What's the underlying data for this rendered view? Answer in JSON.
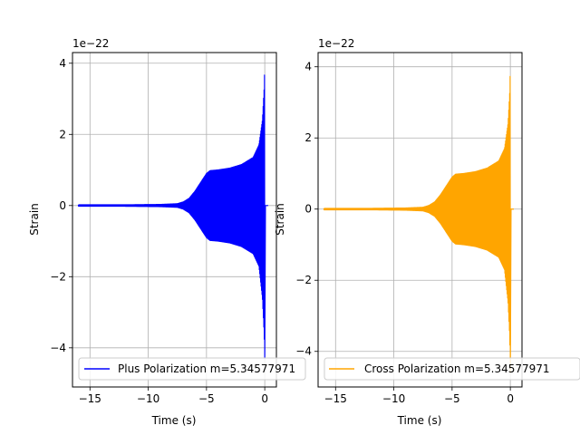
{
  "chart_data": [
    {
      "type": "line",
      "xlabel": "Time (s)",
      "ylabel": "Strain",
      "y_offset_text": "1e−22",
      "xlim": [
        -16.5,
        1.0
      ],
      "ylim": [
        -5.1,
        4.3
      ],
      "xticks": [
        -15,
        -10,
        -5,
        0
      ],
      "xtick_labels": [
        "−15",
        "−10",
        "−5",
        "0"
      ],
      "yticks": [
        4,
        2,
        0,
        -2,
        -4
      ],
      "ytick_labels": [
        "4",
        "2",
        "0",
        "−2",
        "−4"
      ],
      "grid": true,
      "legend_position": "lower-right",
      "series": [
        {
          "name": "Plus Polarization m=5.34577971",
          "color": "#0000ff",
          "envelope": {
            "t": [
              -16.0,
              -12.0,
              -9.0,
              -7.5,
              -7.0,
              -6.5,
              -6.0,
              -5.5,
              -5.0,
              -4.7,
              -4.0,
              -3.0,
              -2.0,
              -1.0,
              -0.5,
              -0.2,
              -0.05,
              0.0
            ],
            "amp": [
              0.02,
              0.02,
              0.03,
              0.05,
              0.1,
              0.2,
              0.4,
              0.65,
              0.9,
              0.98,
              1.0,
              1.05,
              1.15,
              1.35,
              1.7,
              2.4,
              3.3,
              3.9
            ],
            "amp_min": [
              0.02,
              0.02,
              0.03,
              0.05,
              0.1,
              0.2,
              0.4,
              0.65,
              0.9,
              0.98,
              1.0,
              1.05,
              1.15,
              1.35,
              1.7,
              2.6,
              3.6,
              4.3
            ]
          }
        }
      ]
    },
    {
      "type": "line",
      "xlabel": "Time (s)",
      "ylabel": "Strain",
      "y_offset_text": "1e−22",
      "xlim": [
        -16.5,
        1.0
      ],
      "ylim": [
        -5.0,
        4.4
      ],
      "xticks": [
        -15,
        -10,
        -5,
        0
      ],
      "xtick_labels": [
        "−15",
        "−10",
        "−5",
        "0"
      ],
      "yticks": [
        4,
        2,
        0,
        -2,
        -4
      ],
      "ytick_labels": [
        "4",
        "2",
        "0",
        "−2",
        "−4"
      ],
      "grid": true,
      "legend_position": "lower-right",
      "series": [
        {
          "name": "Cross Polarization m=5.34577971",
          "color": "#ffa500",
          "envelope": {
            "t": [
              -16.0,
              -12.0,
              -9.0,
              -7.5,
              -7.0,
              -6.5,
              -6.0,
              -5.5,
              -5.0,
              -4.7,
              -4.0,
              -3.0,
              -2.0,
              -1.0,
              -0.5,
              -0.2,
              -0.05,
              0.0
            ],
            "amp": [
              0.02,
              0.02,
              0.03,
              0.05,
              0.1,
              0.2,
              0.4,
              0.65,
              0.9,
              0.98,
              1.0,
              1.05,
              1.15,
              1.35,
              1.7,
              2.4,
              3.3,
              4.0
            ],
            "amp_min": [
              0.02,
              0.02,
              0.03,
              0.05,
              0.1,
              0.2,
              0.4,
              0.65,
              0.9,
              0.98,
              1.0,
              1.05,
              1.15,
              1.35,
              1.7,
              2.6,
              3.6,
              4.6
            ]
          }
        }
      ]
    }
  ]
}
